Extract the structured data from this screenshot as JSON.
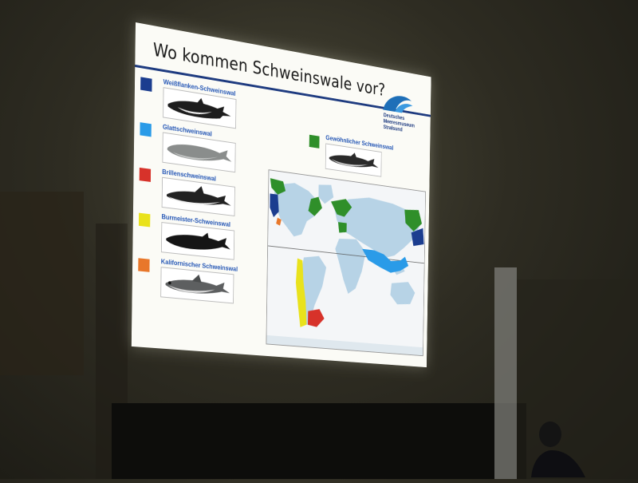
{
  "slide": {
    "title": "Wo kommen Schweinswale vor?",
    "logo": {
      "lines": [
        "Deutsches",
        "Meeresmuseum",
        "Stralsund"
      ],
      "color": "#1e3b80"
    }
  },
  "species": [
    {
      "label": "Weißflanken-Schweinswal",
      "color": "#1b3d8f",
      "icon": "dalls-porpoise-drawing"
    },
    {
      "label": "Glattschweinswal",
      "color": "#2a9be8",
      "icon": "finless-porpoise-drawing"
    },
    {
      "label": "Brillenschweinswal",
      "color": "#d7322a",
      "icon": "spectacled-porpoise-drawing"
    },
    {
      "label": "Burmeister-Schweinswal",
      "color": "#e9e21c",
      "icon": "burmeister-porpoise-drawing"
    },
    {
      "label": "Kalifornischer Schweinswal",
      "color": "#e8772a",
      "icon": "vaquita-drawing"
    },
    {
      "label": "Gewöhnlicher Schweinswal",
      "color": "#2f8f2a",
      "icon": "harbour-porpoise-drawing"
    }
  ],
  "map": {
    "land_color": "#b7d3e6",
    "ocean_color": "#f4f6f8",
    "icon": "world-distribution-map"
  }
}
